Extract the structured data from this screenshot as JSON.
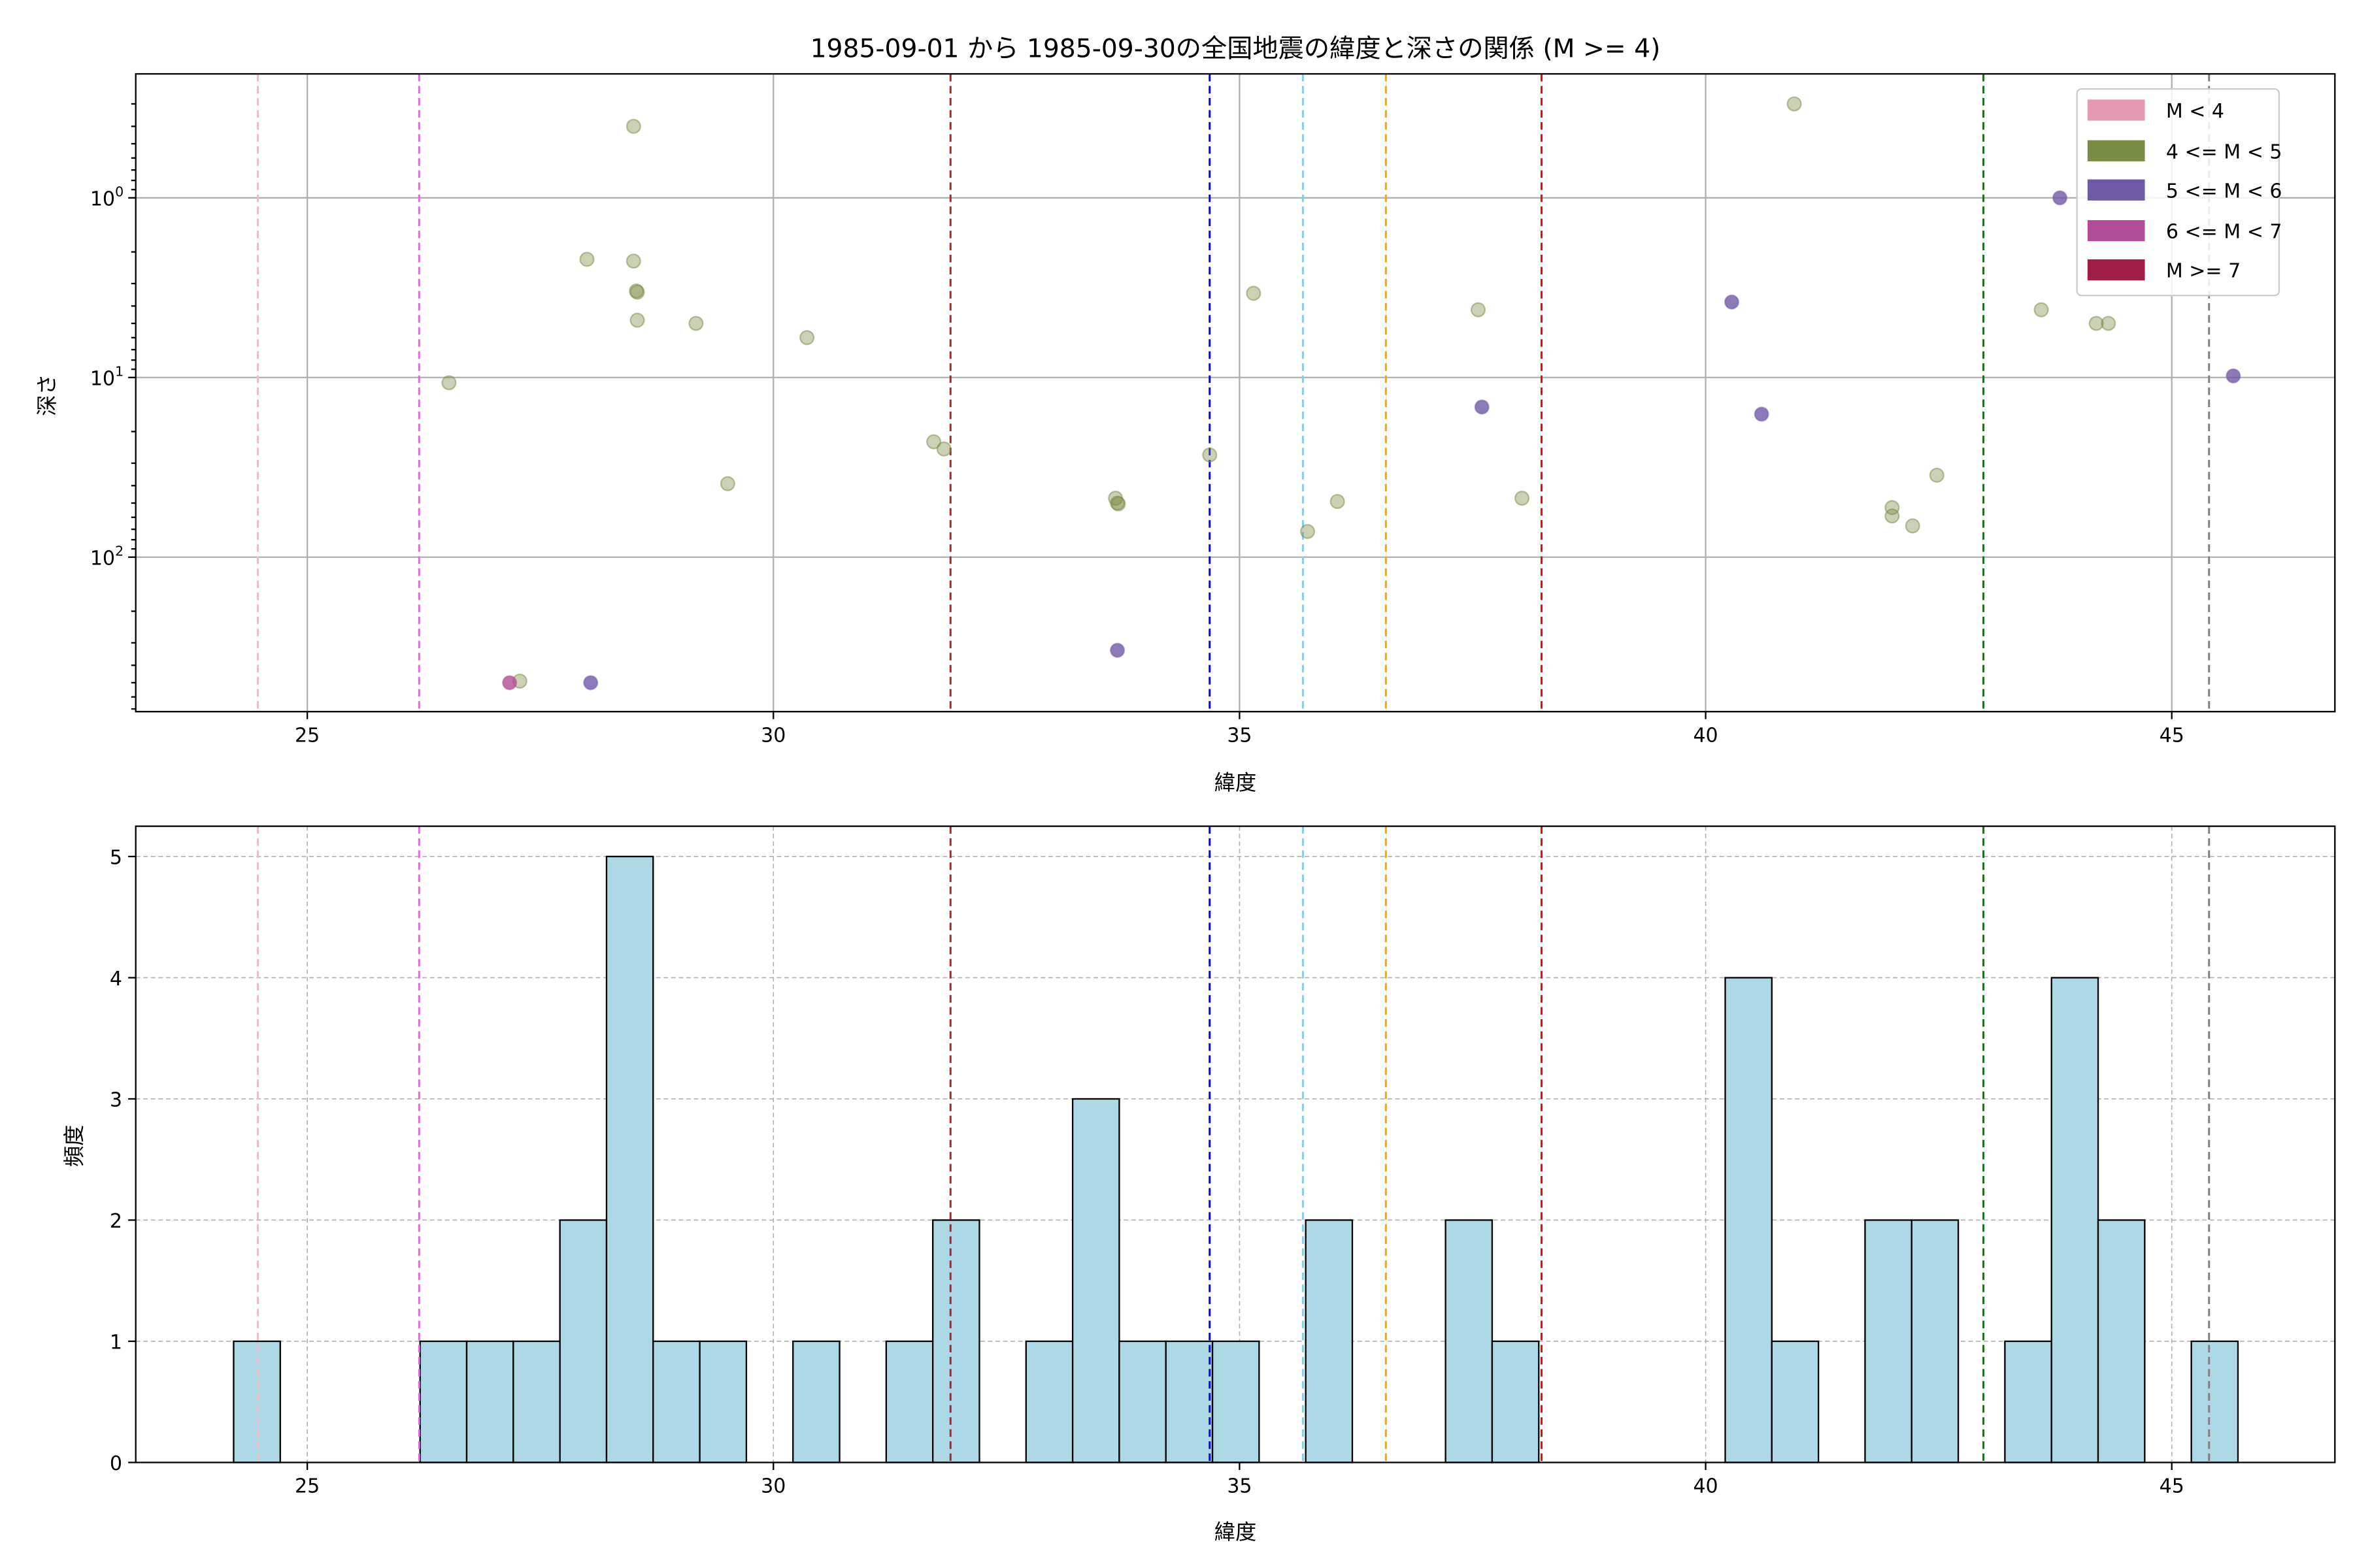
{
  "chart_data": [
    {
      "type": "scatter",
      "title": "1985-09-01 から 1985-09-30の全国地震の緯度と深さの関係 (M >= 4)",
      "xlabel": "緯度",
      "ylabel": "深さ",
      "xlim": [
        23.16,
        46.75
      ],
      "ylim_log10": [
        2.86,
        -0.69
      ],
      "yscale": "log",
      "y_inverted": true,
      "grid": true,
      "xticks": [
        25,
        30,
        35,
        40,
        45
      ],
      "yticks": [
        {
          "value": 1,
          "base": "10",
          "exp": "0"
        },
        {
          "value": 10,
          "base": "10",
          "exp": "1"
        },
        {
          "value": 100,
          "base": "10",
          "exp": "2"
        }
      ],
      "legend": {
        "placement": "top-right",
        "entries": [
          {
            "label": "M < 4",
            "color": "#e59ab4"
          },
          {
            "label": "4 <= M < 5",
            "color": "#7a8c45"
          },
          {
            "label": "5 <= M < 6",
            "color": "#6f5aa6"
          },
          {
            "label": "6 <= M < 7",
            "color": "#b14c96"
          },
          {
            "label": "M >= 7",
            "color": "#a01e45"
          }
        ]
      },
      "series": [
        {
          "name": "4 <= M < 5",
          "color": "#7a8c45",
          "points": [
            [
              28.5,
              0.4
            ],
            [
              28.0,
              2.2
            ],
            [
              28.5,
              2.25
            ],
            [
              28.53,
              3.3
            ],
            [
              28.54,
              3.35
            ],
            [
              28.54,
              4.8
            ],
            [
              29.17,
              5.0
            ],
            [
              30.36,
              6.0
            ],
            [
              26.52,
              10.7
            ],
            [
              31.72,
              22.8
            ],
            [
              31.83,
              25
            ],
            [
              29.51,
              39
            ],
            [
              33.67,
              47
            ],
            [
              33.69,
              50
            ],
            [
              33.7,
              50.5
            ],
            [
              34.68,
              27
            ],
            [
              35.15,
              3.4
            ],
            [
              35.73,
              72
            ],
            [
              36.05,
              49
            ],
            [
              37.56,
              4.2
            ],
            [
              38.03,
              47
            ],
            [
              40.95,
              0.3
            ],
            [
              42.0,
              53
            ],
            [
              42.0,
              59
            ],
            [
              42.22,
              67
            ],
            [
              42.48,
              35
            ],
            [
              43.6,
              4.2
            ],
            [
              44.19,
              5.0
            ],
            [
              44.32,
              5.0
            ],
            [
              27.28,
              490
            ]
          ]
        },
        {
          "name": "5 <= M < 6",
          "color": "#6f5aa6",
          "points": [
            [
              43.8,
              1.0
            ],
            [
              40.28,
              3.8
            ],
            [
              37.6,
              14.6
            ],
            [
              40.6,
              16
            ],
            [
              45.66,
              9.8
            ],
            [
              33.69,
              330
            ],
            [
              28.04,
              500
            ]
          ]
        },
        {
          "name": "6 <= M < 7",
          "color": "#b14c96",
          "points": [
            [
              27.17,
              500
            ]
          ]
        }
      ],
      "vlines": [
        {
          "x": 24.47,
          "color": "#ffb6c1"
        },
        {
          "x": 26.2,
          "color": "#da70d6"
        },
        {
          "x": 31.9,
          "color": "#a52a2a"
        },
        {
          "x": 34.68,
          "color": "#0000ff"
        },
        {
          "x": 35.68,
          "color": "#87ceeb"
        },
        {
          "x": 36.57,
          "color": "#ffa500"
        },
        {
          "x": 38.24,
          "color": "#ff0000"
        },
        {
          "x": 42.98,
          "color": "#008000"
        },
        {
          "x": 45.4,
          "color": "#808080"
        }
      ]
    },
    {
      "type": "bar",
      "subtype": "histogram",
      "xlabel": "緯度",
      "ylabel": "頻度",
      "xlim": [
        23.16,
        46.75
      ],
      "ylim": [
        0,
        5.25
      ],
      "grid": true,
      "xticks": [
        25,
        30,
        35,
        40,
        45
      ],
      "yticks": [
        0,
        1,
        2,
        3,
        4,
        5
      ],
      "bin_start": 24.21,
      "bin_width": 0.5,
      "bar_color": "#add8e6",
      "values": [
        1,
        0,
        0,
        0,
        1,
        1,
        1,
        2,
        5,
        1,
        1,
        0,
        1,
        0,
        1,
        2,
        0,
        1,
        3,
        1,
        1,
        1,
        0,
        2,
        0,
        0,
        2,
        1,
        0,
        0,
        0,
        0,
        4,
        1,
        0,
        2,
        2,
        0,
        1,
        4,
        2,
        0,
        1
      ]
    }
  ]
}
